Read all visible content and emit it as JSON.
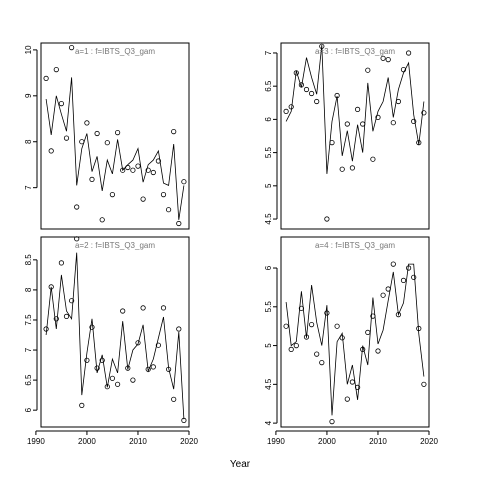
{
  "xlabel": "Year",
  "chart_data": [
    {
      "type": "scatter",
      "title": "a=1  :  f=IBTS_Q3_gam",
      "xlim": [
        1991,
        2020
      ],
      "ylim": [
        6.1,
        10.15
      ],
      "yticks": [
        7,
        8,
        9,
        10
      ],
      "xticks": [],
      "series": [
        {
          "kind": "points",
          "x": [
            1992,
            1993,
            1994,
            1995,
            1996,
            1997,
            1998,
            1999,
            2000,
            2001,
            2002,
            2003,
            2004,
            2005,
            2006,
            2007,
            2008,
            2009,
            2010,
            2011,
            2012,
            2013,
            2014,
            2015,
            2016,
            2017,
            2018,
            2019
          ],
          "y": [
            9.38,
            7.8,
            9.57,
            8.83,
            8.08,
            10.05,
            6.58,
            8.0,
            8.41,
            7.18,
            8.18,
            6.3,
            7.98,
            6.85,
            8.2,
            7.38,
            7.44,
            7.38,
            7.47,
            6.75,
            7.38,
            7.33,
            7.58,
            6.85,
            6.52,
            8.22,
            6.22,
            7.13
          ]
        },
        {
          "kind": "line",
          "x": [
            1992,
            1993,
            1994,
            1995,
            1996,
            1997,
            1998,
            1999,
            2000,
            2001,
            2002,
            2003,
            2004,
            2005,
            2006,
            2007,
            2008,
            2009,
            2010,
            2011,
            2012,
            2013,
            2014,
            2015,
            2016,
            2017,
            2018,
            2019
          ],
          "y": [
            8.93,
            8.15,
            9.0,
            8.6,
            8.23,
            9.4,
            7.05,
            7.85,
            8.18,
            7.35,
            7.68,
            6.93,
            7.6,
            7.3,
            8.05,
            7.38,
            7.5,
            7.6,
            7.85,
            7.12,
            7.5,
            7.6,
            7.8,
            7.1,
            7.05,
            7.95,
            6.3,
            7.05
          ]
        }
      ]
    },
    {
      "type": "scatter",
      "title": "a=3  :  f=IBTS_Q3_gam",
      "xlim": [
        1991,
        2020
      ],
      "ylim": [
        4.35,
        7.15
      ],
      "yticks": [
        4.5,
        5.0,
        5.5,
        6.0,
        6.5,
        7.0
      ],
      "xticks": [],
      "series": [
        {
          "kind": "points",
          "x": [
            1992,
            1993,
            1994,
            1995,
            1996,
            1997,
            1998,
            1999,
            2000,
            2001,
            2002,
            2003,
            2004,
            2005,
            2006,
            2007,
            2008,
            2009,
            2010,
            2011,
            2012,
            2013,
            2014,
            2015,
            2016,
            2017,
            2018,
            2019
          ],
          "y": [
            6.12,
            6.19,
            6.7,
            6.52,
            6.45,
            6.39,
            6.27,
            7.1,
            4.5,
            5.65,
            6.36,
            5.25,
            5.93,
            5.27,
            6.15,
            5.93,
            6.74,
            5.4,
            6.03,
            6.92,
            6.9,
            5.95,
            6.27,
            6.75,
            7.0,
            5.97,
            5.65,
            6.1
          ]
        },
        {
          "kind": "line",
          "x": [
            1992,
            1993,
            1994,
            1995,
            1996,
            1997,
            1998,
            1999,
            2000,
            2001,
            2002,
            2003,
            2004,
            2005,
            2006,
            2007,
            2008,
            2009,
            2010,
            2011,
            2012,
            2013,
            2014,
            2015,
            2016,
            2017,
            2018,
            2019
          ],
          "y": [
            5.97,
            6.12,
            6.73,
            6.48,
            6.93,
            6.63,
            6.38,
            7.12,
            5.18,
            5.97,
            6.35,
            5.45,
            5.83,
            5.37,
            5.92,
            5.5,
            6.55,
            5.82,
            6.12,
            6.27,
            6.63,
            6.03,
            6.45,
            6.7,
            6.85,
            6.07,
            5.62,
            6.27
          ]
        }
      ]
    },
    {
      "type": "scatter",
      "title": "a=2  :  f=IBTS_Q3_gam",
      "xlim": [
        1991,
        2020
      ],
      "ylim": [
        5.72,
        8.88
      ],
      "yticks": [
        6.0,
        6.5,
        7.0,
        7.5,
        8.0,
        8.5
      ],
      "xticks": [
        1990,
        2000,
        2010,
        2020
      ],
      "series": [
        {
          "kind": "points",
          "x": [
            1992,
            1993,
            1994,
            1995,
            1996,
            1997,
            1998,
            1999,
            2000,
            2001,
            2002,
            2003,
            2004,
            2005,
            2006,
            2007,
            2008,
            2009,
            2010,
            2011,
            2012,
            2013,
            2014,
            2015,
            2016,
            2017,
            2018,
            2019
          ],
          "y": [
            7.35,
            8.05,
            7.52,
            8.45,
            7.56,
            7.82,
            8.85,
            6.08,
            6.83,
            7.38,
            6.7,
            6.83,
            6.39,
            6.53,
            6.43,
            7.65,
            6.7,
            6.5,
            7.12,
            7.7,
            6.68,
            6.72,
            7.08,
            7.7,
            6.68,
            6.18,
            7.35,
            5.83
          ]
        },
        {
          "kind": "line",
          "x": [
            1992,
            1993,
            1994,
            1995,
            1996,
            1997,
            1998,
            1999,
            2000,
            2001,
            2002,
            2003,
            2004,
            2005,
            2006,
            2007,
            2008,
            2009,
            2010,
            2011,
            2012,
            2013,
            2014,
            2015,
            2016,
            2017,
            2018,
            2019
          ],
          "y": [
            7.25,
            8.05,
            7.35,
            8.25,
            7.65,
            7.52,
            8.62,
            6.25,
            6.95,
            7.52,
            6.62,
            6.92,
            6.38,
            6.85,
            6.62,
            7.48,
            6.68,
            7.0,
            7.1,
            7.42,
            6.65,
            6.85,
            7.2,
            7.55,
            6.7,
            6.35,
            7.3,
            5.85
          ]
        }
      ]
    },
    {
      "type": "scatter",
      "title": "a=4  :  f=IBTS_Q3_gam",
      "xlim": [
        1991,
        2020
      ],
      "ylim": [
        3.95,
        6.4
      ],
      "yticks": [
        4.0,
        4.5,
        5.0,
        5.5,
        6.0
      ],
      "xticks": [
        1990,
        2000,
        2010,
        2020
      ],
      "series": [
        {
          "kind": "points",
          "x": [
            1992,
            1993,
            1994,
            1995,
            1996,
            1997,
            1998,
            1999,
            2000,
            2001,
            2002,
            2003,
            2004,
            2005,
            2006,
            2007,
            2008,
            2009,
            2010,
            2011,
            2012,
            2013,
            2014,
            2015,
            2016,
            2017,
            2018,
            2019
          ],
          "y": [
            5.25,
            4.95,
            5.0,
            5.48,
            5.11,
            5.27,
            4.89,
            4.78,
            5.42,
            4.02,
            5.25,
            5.1,
            4.31,
            4.53,
            4.46,
            4.95,
            5.17,
            5.38,
            4.93,
            5.65,
            5.73,
            6.05,
            5.4,
            5.84,
            6.0,
            5.88,
            5.22,
            4.5
          ]
        },
        {
          "kind": "line",
          "x": [
            1992,
            1993,
            1994,
            1995,
            1996,
            1997,
            1998,
            1999,
            2000,
            2001,
            2002,
            2003,
            2004,
            2005,
            2006,
            2007,
            2008,
            2009,
            2010,
            2011,
            2012,
            2013,
            2014,
            2015,
            2016,
            2017,
            2018,
            2019
          ],
          "y": [
            5.56,
            5.0,
            5.05,
            5.7,
            5.1,
            5.78,
            5.3,
            5.0,
            5.52,
            4.1,
            5.05,
            5.16,
            4.5,
            4.75,
            4.3,
            5.0,
            4.75,
            5.62,
            5.02,
            5.2,
            5.58,
            5.95,
            5.4,
            5.55,
            6.05,
            6.05,
            5.15,
            4.6
          ]
        }
      ]
    }
  ]
}
